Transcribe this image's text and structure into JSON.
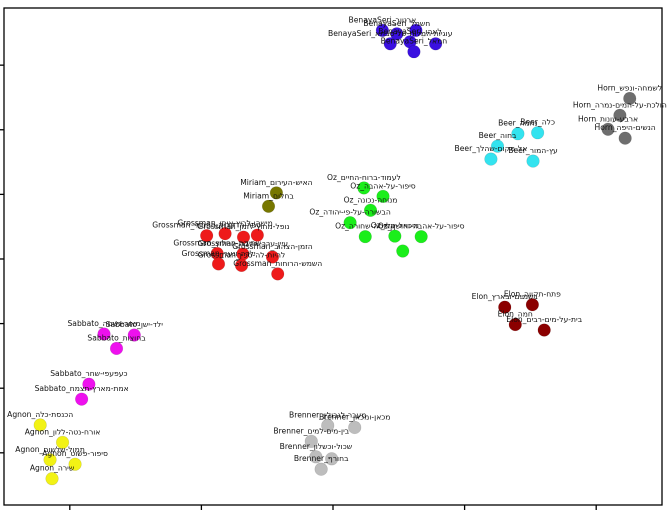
{
  "chart_data": {
    "type": "scatter",
    "title": "",
    "xlabel": "",
    "ylabel": "",
    "xlim": [
      0,
      100
    ],
    "ylim": [
      0,
      100
    ],
    "grid": false,
    "x_ticks": [
      10,
      30,
      50,
      70,
      90
    ],
    "y_ticks": [
      10.5,
      23.5,
      36.5,
      49.5,
      62.5,
      75.5,
      88.5
    ],
    "groups": [
      {
        "color": "#3a10e0",
        "points": [
          {
            "x": 57.5,
            "y": 95.5,
            "label": "BenayaSeri_ארטור"
          },
          {
            "x": 59.7,
            "y": 94.8,
            "label": "BenayaSeri_חשמל"
          },
          {
            "x": 62.6,
            "y": 95.5,
            "label": ""
          },
          {
            "x": 58.7,
            "y": 92.8,
            "label": "BenayaSeri_עוגיות-המלוח-של-סבתא"
          },
          {
            "x": 61.7,
            "y": 93.2,
            "label": "BenayaSeri_לאהו"
          },
          {
            "x": 65.6,
            "y": 92.8,
            "label": ""
          },
          {
            "x": 62.3,
            "y": 91.2,
            "label": "BenayaSeri_חמאל"
          }
        ]
      },
      {
        "color": "#6e6e6e",
        "points": [
          {
            "x": 95.1,
            "y": 81.8,
            "label": "Horn_לשמחה-ונפש"
          },
          {
            "x": 93.6,
            "y": 78.4,
            "label": "Horn_הולכת-על-המים-נמרה"
          },
          {
            "x": 91.8,
            "y": 75.6,
            "label": "Horn_ארבע-עונות"
          },
          {
            "x": 94.4,
            "y": 73.8,
            "label": "Horn_הנשים-היפה"
          }
        ]
      },
      {
        "color": "#33e3ef",
        "points": [
          {
            "x": 75.0,
            "y": 72.2,
            "label": "Beer_בחוה"
          },
          {
            "x": 78.1,
            "y": 74.7,
            "label": "Beer_נחמה"
          },
          {
            "x": 81.1,
            "y": 74.9,
            "label": "Beer_כלה"
          },
          {
            "x": 74.0,
            "y": 69.6,
            "label": "Beer_אל-מקום-שהלך"
          },
          {
            "x": 80.4,
            "y": 69.2,
            "label": "Beer_עץ-המור"
          }
        ]
      },
      {
        "color": "#777700",
        "points": [
          {
            "x": 41.4,
            "y": 62.8,
            "label": "Miriam_האיש-העירום"
          },
          {
            "x": 40.2,
            "y": 60.1,
            "label": "Miriam_בחלום"
          }
        ]
      },
      {
        "color": "#ee1a1a",
        "points": [
          {
            "x": 30.8,
            "y": 54.2,
            "label": "Grossman_ספר-הדקדוק-הפנימי"
          },
          {
            "x": 33.6,
            "y": 54.6,
            "label": "Grossman_מישהו-לרוץ-איתו"
          },
          {
            "x": 36.4,
            "y": 53.9,
            "label": "Grossman_נופל-מחוץ-לזמן"
          },
          {
            "x": 38.5,
            "y": 54.3,
            "label": ""
          },
          {
            "x": 32.4,
            "y": 50.6,
            "label": "Grossman_שתיקת-החלוץ"
          },
          {
            "x": 36.3,
            "y": 50.5,
            "label": "Grossman_עיין-ערך-אהבה"
          },
          {
            "x": 40.8,
            "y": 49.9,
            "label": "Grossman_הזמן-הצהוב"
          },
          {
            "x": 32.6,
            "y": 48.5,
            "label": "Grossman_ילדה-ונער"
          },
          {
            "x": 36.1,
            "y": 48.2,
            "label": "Grossman_להיות-לה-סכין"
          },
          {
            "x": 41.6,
            "y": 46.5,
            "label": "Grossman_השמש-הרוחות"
          }
        ]
      },
      {
        "color": "#1aee1a",
        "points": [
          {
            "x": 54.7,
            "y": 63.8,
            "label": "Oz_לעמוד-ברוח-החיים"
          },
          {
            "x": 57.6,
            "y": 62.1,
            "label": "Oz_סיפור-על-אהבה"
          },
          {
            "x": 55.7,
            "y": 59.3,
            "label": "Oz_מנוחה-נכונה"
          },
          {
            "x": 52.6,
            "y": 56.8,
            "label": "Oz_הבשורה-על-פי-יהודה"
          },
          {
            "x": 54.9,
            "y": 54.0,
            "label": "Oz_קופסה-שחורה"
          },
          {
            "x": 59.4,
            "y": 54.1,
            "label": "Oz_מיכאל-שלי"
          },
          {
            "x": 63.4,
            "y": 54.0,
            "label": "Oz_סיפור-על-אהבה-וחושך"
          },
          {
            "x": 60.6,
            "y": 51.1,
            "label": ""
          }
        ]
      },
      {
        "color": "#8b0000",
        "points": [
          {
            "x": 76.1,
            "y": 39.8,
            "label": "Elon_בשמיים-ובארץ"
          },
          {
            "x": 80.3,
            "y": 40.3,
            "label": "Elon_פתח-תקווה"
          },
          {
            "x": 77.7,
            "y": 36.3,
            "label": "Elon_חמה"
          },
          {
            "x": 82.1,
            "y": 35.2,
            "label": "Elon_בית-על-מים-רבים"
          }
        ]
      },
      {
        "color": "#ee10ee",
        "points": [
          {
            "x": 15.2,
            "y": 34.4,
            "label": "Sabbato_מאור-נשמה"
          },
          {
            "x": 19.8,
            "y": 34.2,
            "label": "Sabbato_ילד-ישן"
          },
          {
            "x": 17.1,
            "y": 31.5,
            "label": "Sabbato_בחוצות"
          },
          {
            "x": 12.9,
            "y": 24.3,
            "label": "Sabbato_כעפעפי-שחר"
          },
          {
            "x": 11.8,
            "y": 21.3,
            "label": "Sabbato_אמת-מארץ-תצמח"
          }
        ]
      },
      {
        "color": "#f2f215",
        "points": [
          {
            "x": 5.5,
            "y": 16.1,
            "label": "Agnon_הכנסת-כלה"
          },
          {
            "x": 8.9,
            "y": 12.6,
            "label": "Agnon_אורח-נטה-ללון"
          },
          {
            "x": 7.0,
            "y": 9.1,
            "label": "Agnon_תמול-שלשום"
          },
          {
            "x": 10.8,
            "y": 8.2,
            "label": "Agnon_סיפור-פשוט"
          },
          {
            "x": 7.3,
            "y": 5.3,
            "label": "Agnon_שירה"
          }
        ]
      },
      {
        "color": "#bdbdbd",
        "points": [
          {
            "x": 49.2,
            "y": 16.0,
            "label": "Brenner_מעבר-לגבולין"
          },
          {
            "x": 53.3,
            "y": 15.6,
            "label": "Brenner_מכאן-ומכאן"
          },
          {
            "x": 46.7,
            "y": 12.8,
            "label": "Brenner_בין-מים-למים"
          },
          {
            "x": 47.4,
            "y": 9.7,
            "label": "Brenner_שכול-וכשלון"
          },
          {
            "x": 49.8,
            "y": 9.3,
            "label": ""
          },
          {
            "x": 48.2,
            "y": 7.2,
            "label": "Brenner_בחורף"
          }
        ]
      }
    ]
  }
}
